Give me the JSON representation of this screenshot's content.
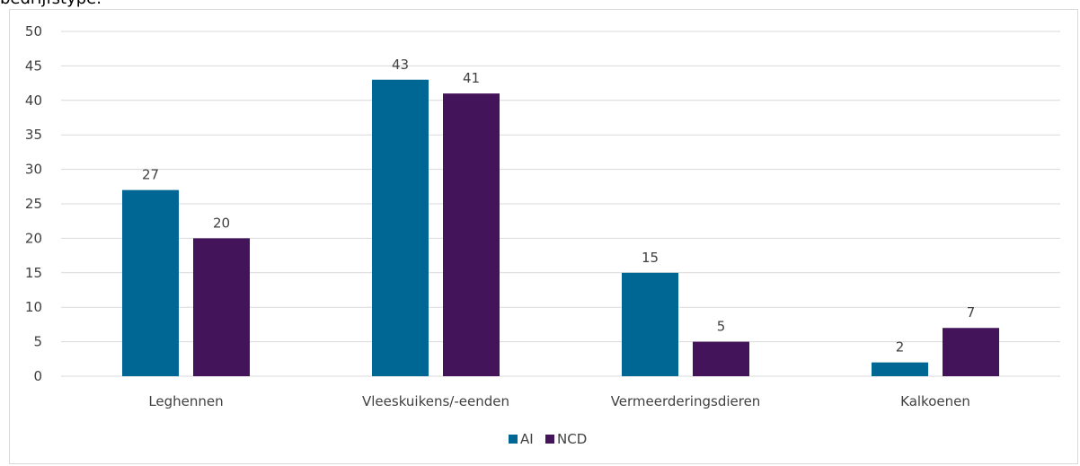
{
  "caption_fragment": "bedrijfstype.",
  "chart_data": {
    "type": "bar",
    "categories": [
      "Leghennen",
      "Vleeskuikens/-eenden",
      "Vermeerderingsdieren",
      "Kalkoenen"
    ],
    "series": [
      {
        "name": "AI",
        "values": [
          27,
          43,
          15,
          2
        ],
        "color": "#006694"
      },
      {
        "name": "NCD",
        "values": [
          20,
          41,
          5,
          7
        ],
        "color": "#43145a"
      }
    ],
    "yticks": [
      0,
      5,
      10,
      15,
      20,
      25,
      30,
      35,
      40,
      45,
      50
    ],
    "ylim": [
      0,
      50
    ],
    "grid": true,
    "legend_position": "bottom",
    "data_labels": true
  }
}
